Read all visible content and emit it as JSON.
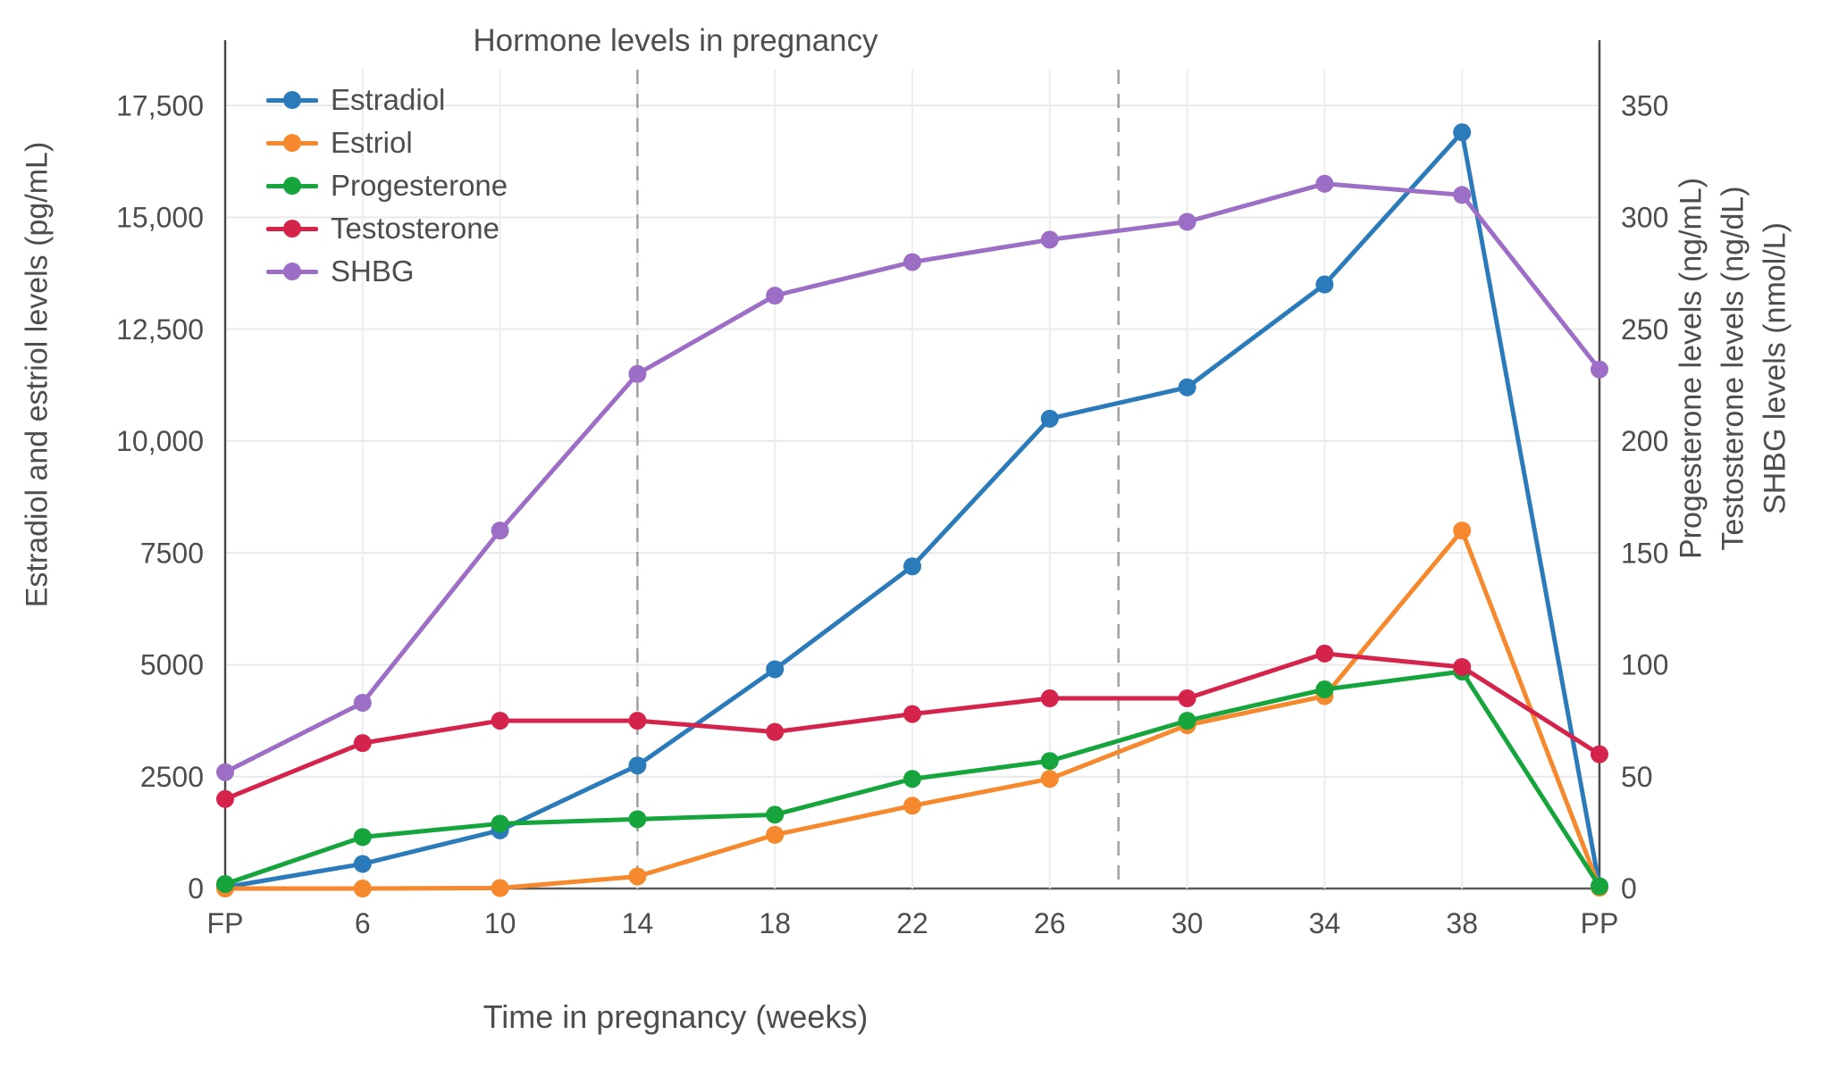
{
  "title": "Hormone levels in pregnancy",
  "x_title": "Time in pregnancy (weeks)",
  "y_left_title": "Estradiol and estriol levels (pg/mL)",
  "y_right_titles": [
    "Progesterone levels (ng/mL)",
    "Testosterone levels (ng/dL)",
    "SHBG levels (nmol/L)"
  ],
  "colors": {
    "text": "#4d4d4d",
    "grid": "#e9e9e9",
    "vertical_grid": "#ededed",
    "zero_line": "#5a5a5a",
    "boundary_line": "#4a4a4a",
    "trimester_dash": "#a0a0a0"
  },
  "chart_data": {
    "type": "line",
    "categories": [
      "FP",
      "6",
      "10",
      "14",
      "18",
      "22",
      "26",
      "30",
      "34",
      "38",
      "PP"
    ],
    "left_axis": {
      "max": 18300,
      "tick_values": [
        0,
        2500,
        5000,
        7500,
        10000,
        12500,
        15000,
        17500
      ],
      "tick_labels": [
        "0",
        "2500",
        "5000",
        "7500",
        "10,000",
        "12,500",
        "15,000",
        "17,500"
      ]
    },
    "right_axis": {
      "max": 366,
      "tick_values": [
        0,
        50,
        100,
        150,
        200,
        250,
        300,
        350
      ],
      "tick_labels": [
        "0",
        "50",
        "100",
        "150",
        "200",
        "250",
        "300",
        "350"
      ]
    },
    "trimester_boundaries_idx": [
      3,
      6.5
    ],
    "edge_lines_idx": [
      0,
      10
    ],
    "series": [
      {
        "name": "Estradiol",
        "axis": "left",
        "color": "#2b7bba",
        "values": [
          30,
          550,
          1300,
          2750,
          4900,
          7200,
          10500,
          11200,
          13500,
          16900,
          50
        ]
      },
      {
        "name": "Estriol",
        "axis": "left",
        "color": "#f6882d",
        "values": [
          0,
          0,
          10,
          270,
          1200,
          1850,
          2450,
          3650,
          4300,
          8000,
          20
        ]
      },
      {
        "name": "Progesterone",
        "axis": "right",
        "color": "#15a53c",
        "values": [
          2,
          23,
          29,
          31,
          33,
          49,
          57,
          75,
          89,
          97,
          1
        ]
      },
      {
        "name": "Testosterone",
        "axis": "right",
        "color": "#d4244c",
        "values": [
          40,
          65,
          75,
          75,
          70,
          78,
          85,
          85,
          105,
          99,
          60
        ]
      },
      {
        "name": "SHBG",
        "axis": "right",
        "color": "#9d6ec6",
        "values": [
          52,
          83,
          160,
          230,
          265,
          280,
          290,
          298,
          315,
          310,
          232
        ]
      }
    ],
    "legend_position": "top-left-inside",
    "grid": true
  }
}
